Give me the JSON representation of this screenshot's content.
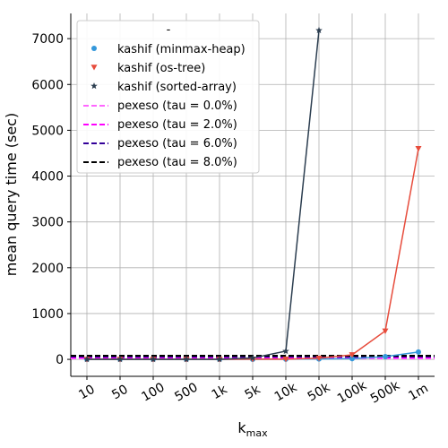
{
  "chart_data": {
    "type": "line",
    "x_categories": [
      "10",
      "50",
      "100",
      "500",
      "1k",
      "5k",
      "10k",
      "50k",
      "100k",
      "500k",
      "1m"
    ],
    "xlabel_main": "k",
    "xlabel_sub": "max",
    "ylabel": "mean query time (sec)",
    "yticks": [
      0,
      1000,
      2000,
      3000,
      4000,
      5000,
      6000,
      7000
    ],
    "ylim": [
      -370,
      7550
    ],
    "grid": true,
    "legend": {
      "title": "-",
      "placement": "top-left"
    },
    "series": [
      {
        "name": "kashif (minmax-heap)",
        "color": "#3498db",
        "marker": "circle",
        "values": [
          1,
          1,
          1,
          1,
          1,
          2,
          3,
          8,
          15,
          60,
          160
        ]
      },
      {
        "name": "kashif (os-tree)",
        "color": "#e74c3c",
        "marker": "triangle-down",
        "values": [
          1,
          1,
          1,
          1,
          1,
          3,
          5,
          25,
          100,
          620,
          4600
        ]
      },
      {
        "name": "kashif (sorted-array)",
        "color": "#2c3e50",
        "marker": "star",
        "values": [
          1,
          1,
          1,
          1,
          2,
          30,
          180,
          7180,
          null,
          null,
          null
        ]
      }
    ],
    "reference_lines": [
      {
        "name": "pexeso (tau = 0.0%)",
        "color": "#ff66ff",
        "value": 20
      },
      {
        "name": "pexeso (tau = 2.0%)",
        "color": "#ff00ff",
        "value": 40
      },
      {
        "name": "pexeso (tau = 6.0%)",
        "color": "#330099",
        "value": 60
      },
      {
        "name": "pexeso (tau = 8.0%)",
        "color": "#000000",
        "value": 80
      }
    ]
  }
}
